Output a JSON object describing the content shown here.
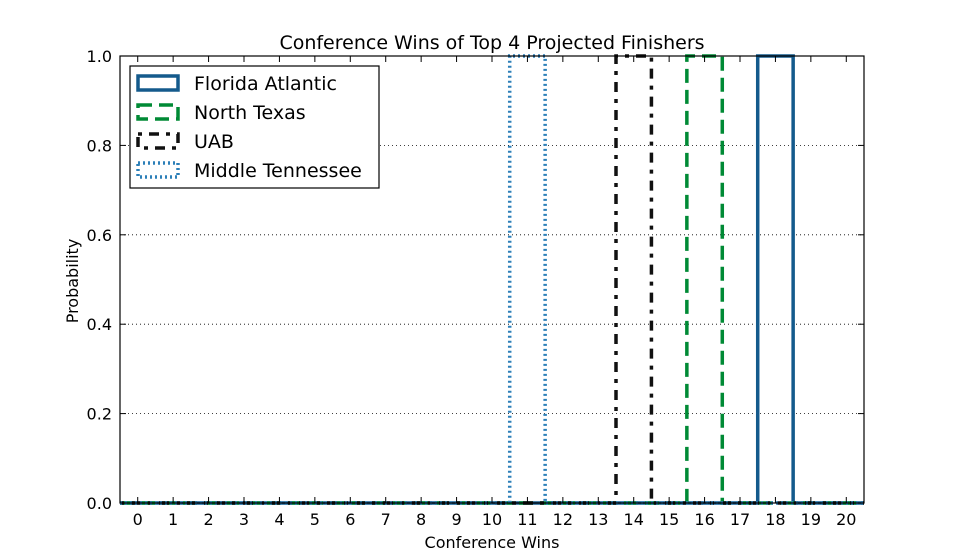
{
  "chart_data": {
    "type": "step-histogram",
    "title": "Conference Wins of Top 4 Projected Finishers",
    "xlabel": "Conference Wins",
    "ylabel": "Probability",
    "xlim": [
      -0.5,
      20.5
    ],
    "ylim": [
      0.0,
      1.0
    ],
    "x_ticks": [
      "0",
      "1",
      "2",
      "3",
      "4",
      "5",
      "6",
      "7",
      "8",
      "9",
      "10",
      "11",
      "12",
      "13",
      "14",
      "15",
      "16",
      "17",
      "18",
      "19",
      "20"
    ],
    "y_ticks": [
      "0.0",
      "0.2",
      "0.4",
      "0.6",
      "0.8",
      "1.0"
    ],
    "grid": "dotted, both axes",
    "legend_position": "upper-left",
    "series": [
      {
        "name": "Florida Atlantic",
        "color": "#145a8c",
        "linestyle": "solid",
        "values": [
          0,
          0,
          0,
          0,
          0,
          0,
          0,
          0,
          0,
          0,
          0,
          0,
          0,
          0,
          0,
          0,
          0,
          0,
          1,
          0,
          0
        ]
      },
      {
        "name": "North Texas",
        "color": "#008a35",
        "linestyle": "dashed",
        "values": [
          0,
          0,
          0,
          0,
          0,
          0,
          0,
          0,
          0,
          0,
          0,
          0,
          0,
          0,
          0,
          0,
          1,
          0,
          0,
          0,
          0
        ]
      },
      {
        "name": "UAB",
        "color": "#111111",
        "linestyle": "dashdot",
        "values": [
          0,
          0,
          0,
          0,
          0,
          0,
          0,
          0,
          0,
          0,
          0,
          0,
          0,
          0,
          1,
          0,
          0,
          0,
          0,
          0,
          0
        ]
      },
      {
        "name": "Middle Tennessee",
        "color": "#2b7fb8",
        "linestyle": "dotted",
        "values": [
          0,
          0,
          0,
          0,
          0,
          0,
          0,
          0,
          0,
          0,
          0,
          1,
          0,
          0,
          0,
          0,
          0,
          0,
          0,
          0,
          0
        ]
      }
    ]
  }
}
